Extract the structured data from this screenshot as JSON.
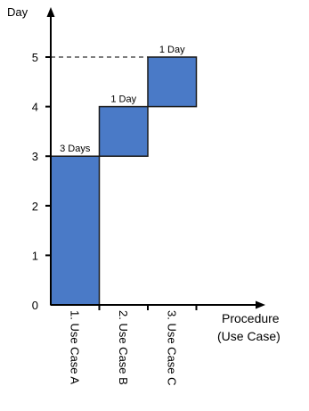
{
  "chart_data": {
    "type": "bar",
    "layout": "stacked-gantt-staircase",
    "ylabel": "Day",
    "xlabel_lines": [
      "Procedure",
      "(Use Case)"
    ],
    "ylim": [
      0,
      5
    ],
    "y_ticks": [
      "0",
      "1",
      "2",
      "3",
      "4",
      "5"
    ],
    "categories": [
      "1. Use Case A",
      "2. Use Case B",
      "3. Use Case C"
    ],
    "segments": [
      {
        "category": "1. Use Case A",
        "start": 0,
        "end": 3,
        "label": "3 Days"
      },
      {
        "category": "2. Use Case B",
        "start": 3,
        "end": 4,
        "label": "1 Day"
      },
      {
        "category": "3. Use Case C",
        "start": 4,
        "end": 5,
        "label": "1 Day"
      }
    ],
    "reference_line": {
      "y": 5,
      "style": "dashed"
    },
    "colors": {
      "bar_fill": "#4a7ac7",
      "bar_stroke": "#1a1a1a",
      "axis": "#000000"
    }
  }
}
